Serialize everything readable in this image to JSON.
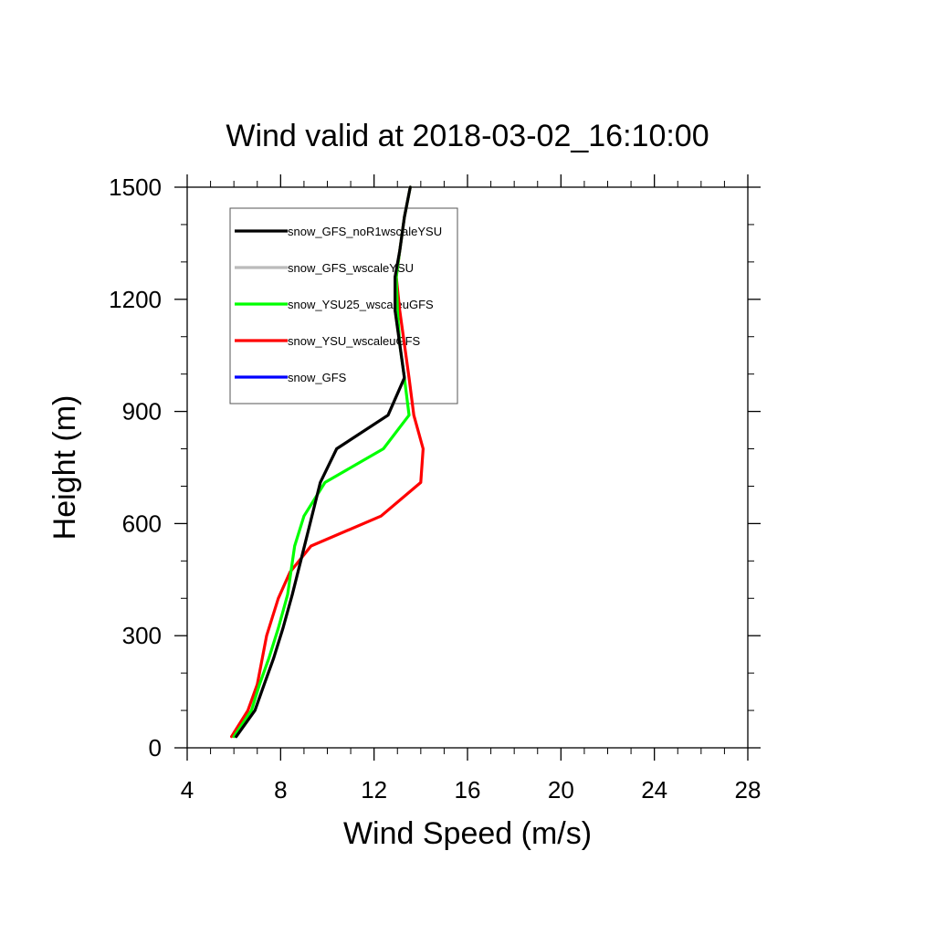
{
  "chart_data": {
    "type": "line",
    "title": "Wind valid at 2018-03-02_16:10:00",
    "xlabel": "Wind Speed (m/s)",
    "ylabel": "Height (m)",
    "xlim": [
      4,
      28
    ],
    "ylim": [
      0,
      1500
    ],
    "xticks": [
      "4",
      "8",
      "12",
      "16",
      "20",
      "24",
      "28"
    ],
    "yticks": [
      "0",
      "300",
      "600",
      "900",
      "1200",
      "1500"
    ],
    "grid": false,
    "legend_position": "top-left",
    "series": [
      {
        "name": "snow_GFS_noR1wscaleYSU",
        "color": "#000000",
        "x": [
          6.1,
          6.9,
          7.3,
          7.7,
          8.1,
          8.5,
          8.9,
          9.3,
          9.7,
          10.4,
          12.6,
          13.3,
          13.1,
          12.9,
          12.9,
          13.1,
          13.3,
          13.55
        ],
        "y": [
          30,
          100,
          170,
          240,
          320,
          410,
          510,
          610,
          710,
          800,
          890,
          990,
          1080,
          1170,
          1260,
          1330,
          1420,
          1500
        ]
      },
      {
        "name": "snow_GFS_wscaleYSU",
        "color": "#bbbbbb",
        "x": [
          6.1,
          6.9,
          7.3,
          7.7,
          8.1,
          8.5,
          8.9,
          9.3,
          9.7,
          10.4,
          12.6,
          13.3,
          13.1,
          12.9,
          12.9,
          13.1,
          13.3,
          13.55
        ],
        "y": [
          30,
          100,
          170,
          240,
          320,
          410,
          510,
          610,
          710,
          800,
          890,
          990,
          1080,
          1170,
          1260,
          1330,
          1420,
          1500
        ]
      },
      {
        "name": "snow_YSU25_wscaleuGFS",
        "color": "#00ff00",
        "x": [
          6.0,
          6.75,
          7.1,
          7.5,
          7.9,
          8.3,
          8.6,
          9.0,
          9.9,
          12.4,
          13.5,
          13.3,
          13.1,
          13.0,
          12.95,
          13.1,
          13.3,
          13.55
        ],
        "y": [
          30,
          100,
          170,
          240,
          320,
          410,
          540,
          620,
          710,
          800,
          890,
          990,
          1080,
          1170,
          1260,
          1330,
          1420,
          1500
        ]
      },
      {
        "name": "snow_YSU_wscaleuGFS",
        "color": "#ff0000",
        "x": [
          5.9,
          6.6,
          7.0,
          7.4,
          7.9,
          8.4,
          9.3,
          12.3,
          14.0,
          14.1,
          13.7,
          13.5,
          13.3,
          13.1,
          12.95,
          13.1,
          13.3,
          13.55
        ],
        "y": [
          30,
          100,
          170,
          300,
          400,
          470,
          540,
          620,
          710,
          800,
          890,
          990,
          1080,
          1170,
          1260,
          1330,
          1420,
          1500
        ]
      },
      {
        "name": "snow_GFS",
        "color": "#0000ff",
        "x": [],
        "y": []
      }
    ]
  }
}
